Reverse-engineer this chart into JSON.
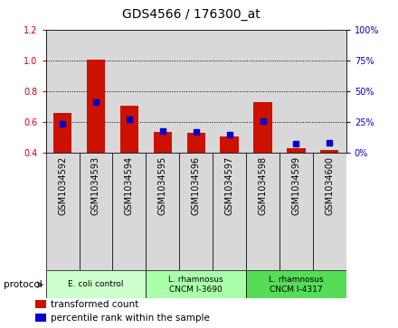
{
  "title": "GDS4566 / 176300_at",
  "samples": [
    "GSM1034592",
    "GSM1034593",
    "GSM1034594",
    "GSM1034595",
    "GSM1034596",
    "GSM1034597",
    "GSM1034598",
    "GSM1034599",
    "GSM1034600"
  ],
  "transformed_count": [
    0.655,
    1.005,
    0.705,
    0.535,
    0.53,
    0.505,
    0.73,
    0.43,
    0.415
  ],
  "percentile_rank": [
    0.585,
    0.73,
    0.615,
    0.54,
    0.535,
    0.515,
    0.605,
    0.455,
    0.465
  ],
  "ylim_left": [
    0.4,
    1.2
  ],
  "ylim_right": [
    0,
    100
  ],
  "yticks_left": [
    0.4,
    0.6,
    0.8,
    1.0,
    1.2
  ],
  "yticks_right": [
    0,
    25,
    50,
    75,
    100
  ],
  "ytick_labels_right": [
    "0%",
    "25%",
    "50%",
    "75%",
    "100%"
  ],
  "bar_color": "#cc1100",
  "dot_color": "#0000cc",
  "bg_color": "#d8d8d8",
  "white_bg": "#ffffff",
  "protocol_groups": [
    {
      "label": "E. coli control",
      "start": 0,
      "end": 3,
      "color": "#ccffcc"
    },
    {
      "label": "L. rhamnosus\nCNCM I-3690",
      "start": 3,
      "end": 6,
      "color": "#aaffaa"
    },
    {
      "label": "L. rhamnosus\nCNCM I-4317",
      "start": 6,
      "end": 9,
      "color": "#55dd55"
    }
  ],
  "legend_items": [
    {
      "label": "transformed count",
      "color": "#cc1100"
    },
    {
      "label": "percentile rank within the sample",
      "color": "#0000cc"
    }
  ],
  "left_tick_color": "#cc0000",
  "right_tick_color": "#0000cc",
  "title_fontsize": 10,
  "tick_fontsize": 7,
  "label_fontsize": 7,
  "bar_width": 0.55,
  "dot_size": 16
}
